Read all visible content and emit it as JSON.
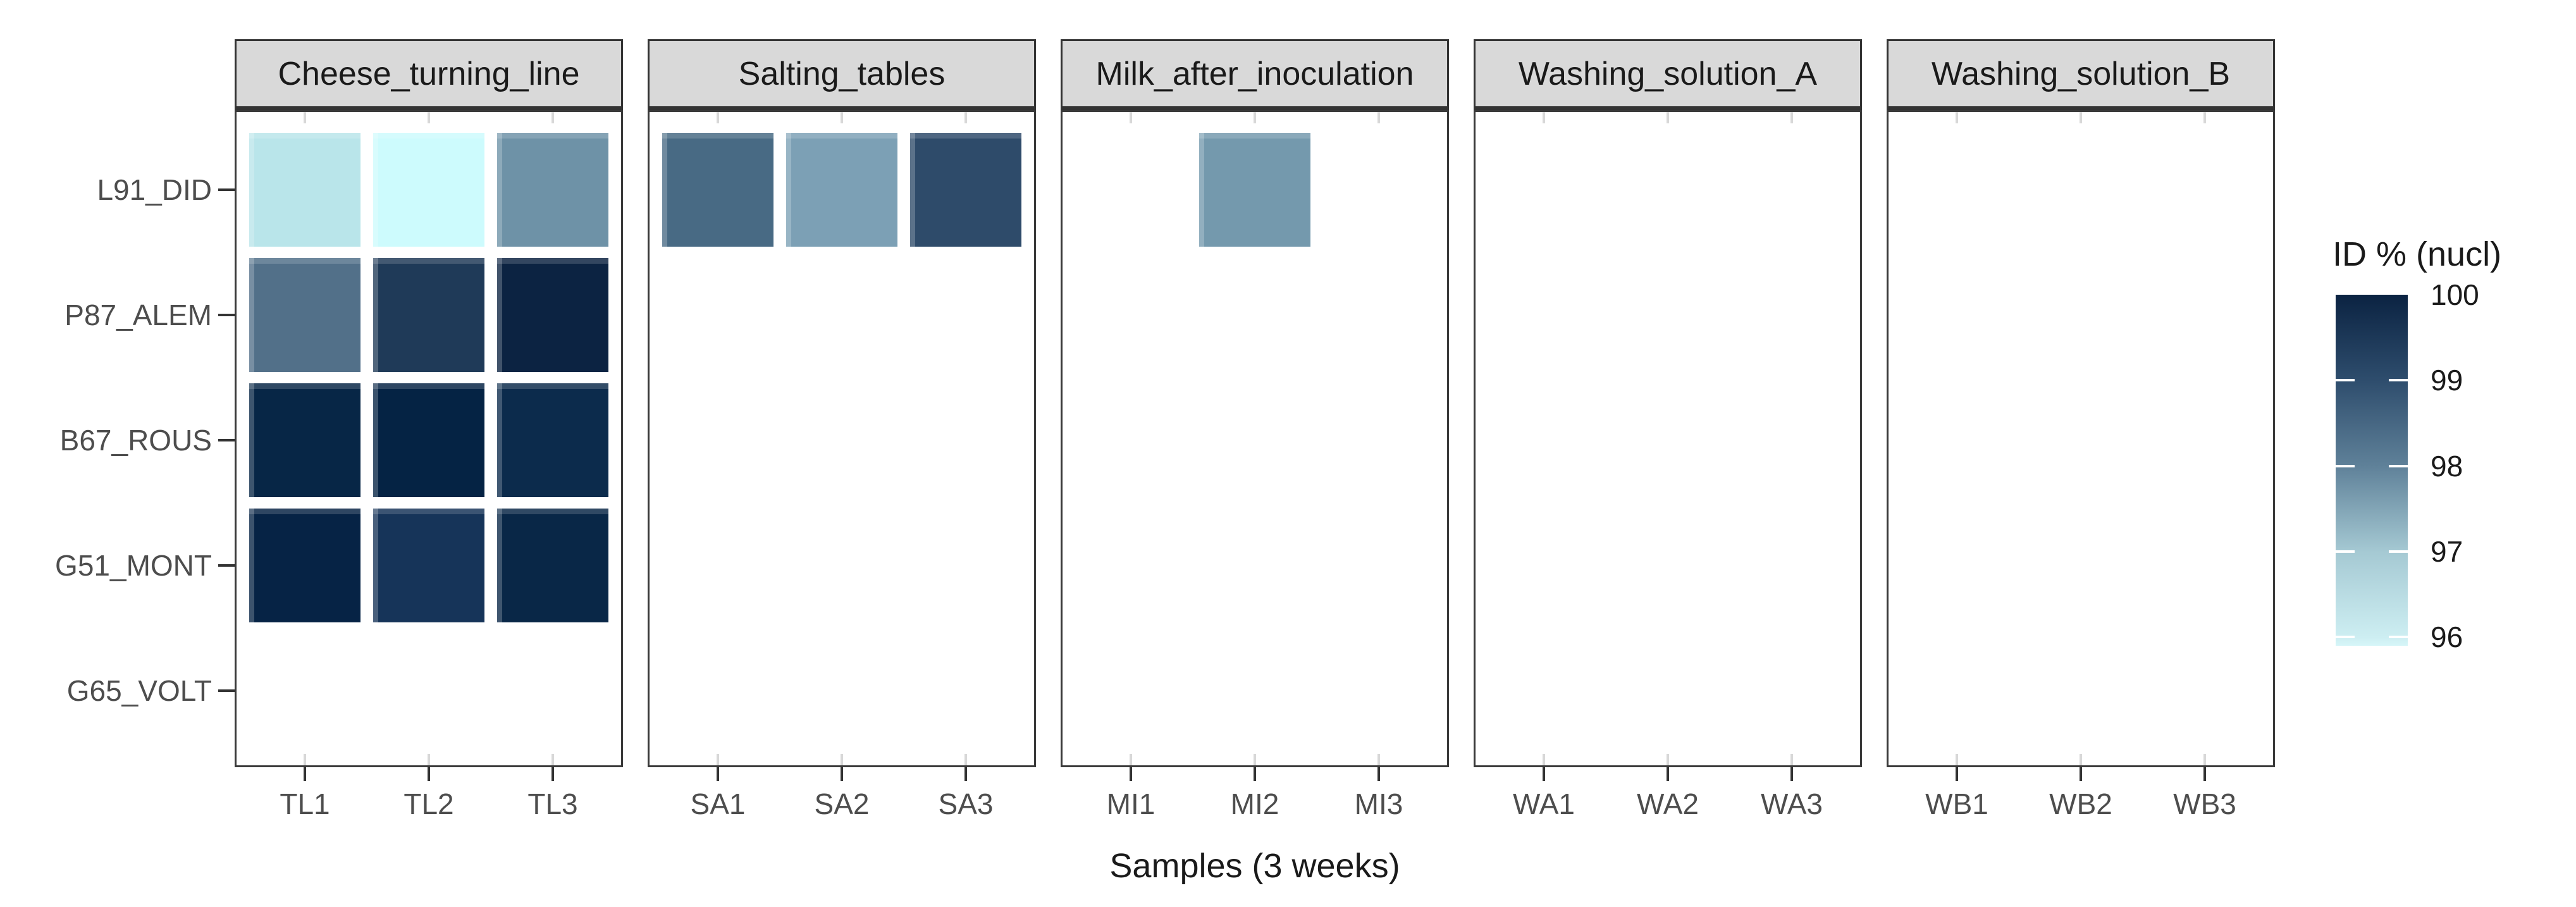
{
  "chart_data": {
    "type": "heatmap",
    "title": "",
    "xlabel": "Samples (3 weeks)",
    "ylabel": "",
    "grid": false,
    "legend_position": "right",
    "y_categories": [
      "L91_DID",
      "P87_ALEM",
      "B67_ROUS",
      "G51_MONT",
      "G65_VOLT"
    ],
    "facets": [
      {
        "label": "Cheese_turning_line",
        "x_categories": [
          "TL1",
          "TL2",
          "TL3"
        ]
      },
      {
        "label": "Salting_tables",
        "x_categories": [
          "SA1",
          "SA2",
          "SA3"
        ]
      },
      {
        "label": "Milk_after_inoculation",
        "x_categories": [
          "MI1",
          "MI2",
          "MI3"
        ]
      },
      {
        "label": "Washing_solution_A",
        "x_categories": [
          "WA1",
          "WA2",
          "WA3"
        ]
      },
      {
        "label": "Washing_solution_B",
        "x_categories": [
          "WB1",
          "WB2",
          "WB3"
        ]
      }
    ],
    "legend": {
      "title": "ID % (nucl)",
      "tick_labels": [
        "100",
        "99",
        "98",
        "97",
        "96"
      ],
      "range_top": 100,
      "range_bottom": 95.9,
      "gradient_stops": [
        {
          "value": 100,
          "color": "#0b2342"
        },
        {
          "value": 99,
          "color": "#2e4d6d"
        },
        {
          "value": 98,
          "color": "#5f8199"
        },
        {
          "value": 97,
          "color": "#a5c9d3"
        },
        {
          "value": 96,
          "color": "#cdeef2"
        },
        {
          "value": 95.9,
          "color": "#d6f6f8"
        }
      ]
    },
    "tiles": [
      {
        "facet": "Cheese_turning_line",
        "y": "L91_DID",
        "x": "TL1",
        "id_pct": 96.4,
        "color": "#b9e5ea"
      },
      {
        "facet": "Cheese_turning_line",
        "y": "L91_DID",
        "x": "TL2",
        "id_pct": 96.0,
        "color": "#cdfbfd"
      },
      {
        "facet": "Cheese_turning_line",
        "y": "L91_DID",
        "x": "TL3",
        "id_pct": 97.7,
        "color": "#6e92a7"
      },
      {
        "facet": "Cheese_turning_line",
        "y": "P87_ALEM",
        "x": "TL1",
        "id_pct": 98.3,
        "color": "#527089"
      },
      {
        "facet": "Cheese_turning_line",
        "y": "P87_ALEM",
        "x": "TL2",
        "id_pct": 99.4,
        "color": "#1f3a58"
      },
      {
        "facet": "Cheese_turning_line",
        "y": "P87_ALEM",
        "x": "TL3",
        "id_pct": 99.9,
        "color": "#0c2342"
      },
      {
        "facet": "Cheese_turning_line",
        "y": "B67_ROUS",
        "x": "TL1",
        "id_pct": 99.9,
        "color": "#072646"
      },
      {
        "facet": "Cheese_turning_line",
        "y": "B67_ROUS",
        "x": "TL2",
        "id_pct": 100.0,
        "color": "#052344"
      },
      {
        "facet": "Cheese_turning_line",
        "y": "B67_ROUS",
        "x": "TL3",
        "id_pct": 99.8,
        "color": "#0c2b4c"
      },
      {
        "facet": "Cheese_turning_line",
        "y": "G51_MONT",
        "x": "TL1",
        "id_pct": 100.0,
        "color": "#062345"
      },
      {
        "facet": "Cheese_turning_line",
        "y": "G51_MONT",
        "x": "TL2",
        "id_pct": 99.6,
        "color": "#163459"
      },
      {
        "facet": "Cheese_turning_line",
        "y": "G51_MONT",
        "x": "TL3",
        "id_pct": 99.9,
        "color": "#092747"
      },
      {
        "facet": "Salting_tables",
        "y": "L91_DID",
        "x": "SA1",
        "id_pct": 98.5,
        "color": "#486a84"
      },
      {
        "facet": "Salting_tables",
        "y": "L91_DID",
        "x": "SA2",
        "id_pct": 97.4,
        "color": "#7ca0b5"
      },
      {
        "facet": "Salting_tables",
        "y": "L91_DID",
        "x": "SA3",
        "id_pct": 99.0,
        "color": "#2e4b6a"
      },
      {
        "facet": "Milk_after_inoculation",
        "y": "L91_DID",
        "x": "MI2",
        "id_pct": 97.6,
        "color": "#7499ad"
      }
    ]
  }
}
